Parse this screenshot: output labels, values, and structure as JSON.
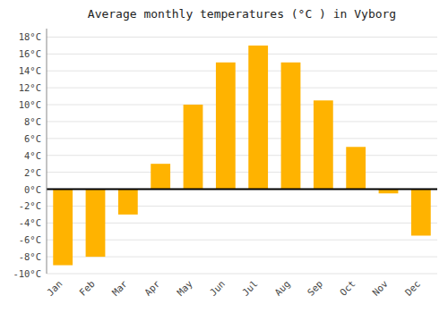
{
  "chart_data": {
    "type": "bar",
    "title": "Average monthly temperatures (°C ) in Vyborg",
    "categories": [
      "Jan",
      "Feb",
      "Mar",
      "Apr",
      "May",
      "Jun",
      "Jul",
      "Aug",
      "Sep",
      "Oct",
      "Nov",
      "Dec"
    ],
    "values": [
      -9,
      -8,
      -3,
      3,
      10,
      15,
      17,
      15,
      10.5,
      5,
      -0.5,
      -5.5
    ],
    "color": "#FFB300",
    "ylim": [
      -10,
      19
    ],
    "yticks": [
      {
        "value": -10,
        "label": "-10°C"
      },
      {
        "value": -8,
        "label": "-8°C"
      },
      {
        "value": -6,
        "label": "-6°C"
      },
      {
        "value": -4,
        "label": "-4°C"
      },
      {
        "value": -2,
        "label": "-2°C"
      },
      {
        "value": 0,
        "label": "0°C"
      },
      {
        "value": 2,
        "label": "2°C"
      },
      {
        "value": 4,
        "label": "4°C"
      },
      {
        "value": 6,
        "label": "6°C"
      },
      {
        "value": 8,
        "label": "8°C"
      },
      {
        "value": 10,
        "label": "10°C"
      },
      {
        "value": 12,
        "label": "12°C"
      },
      {
        "value": 14,
        "label": "14°C"
      },
      {
        "value": 16,
        "label": "16°C"
      },
      {
        "value": 18,
        "label": "18°C"
      }
    ],
    "grid": true
  }
}
